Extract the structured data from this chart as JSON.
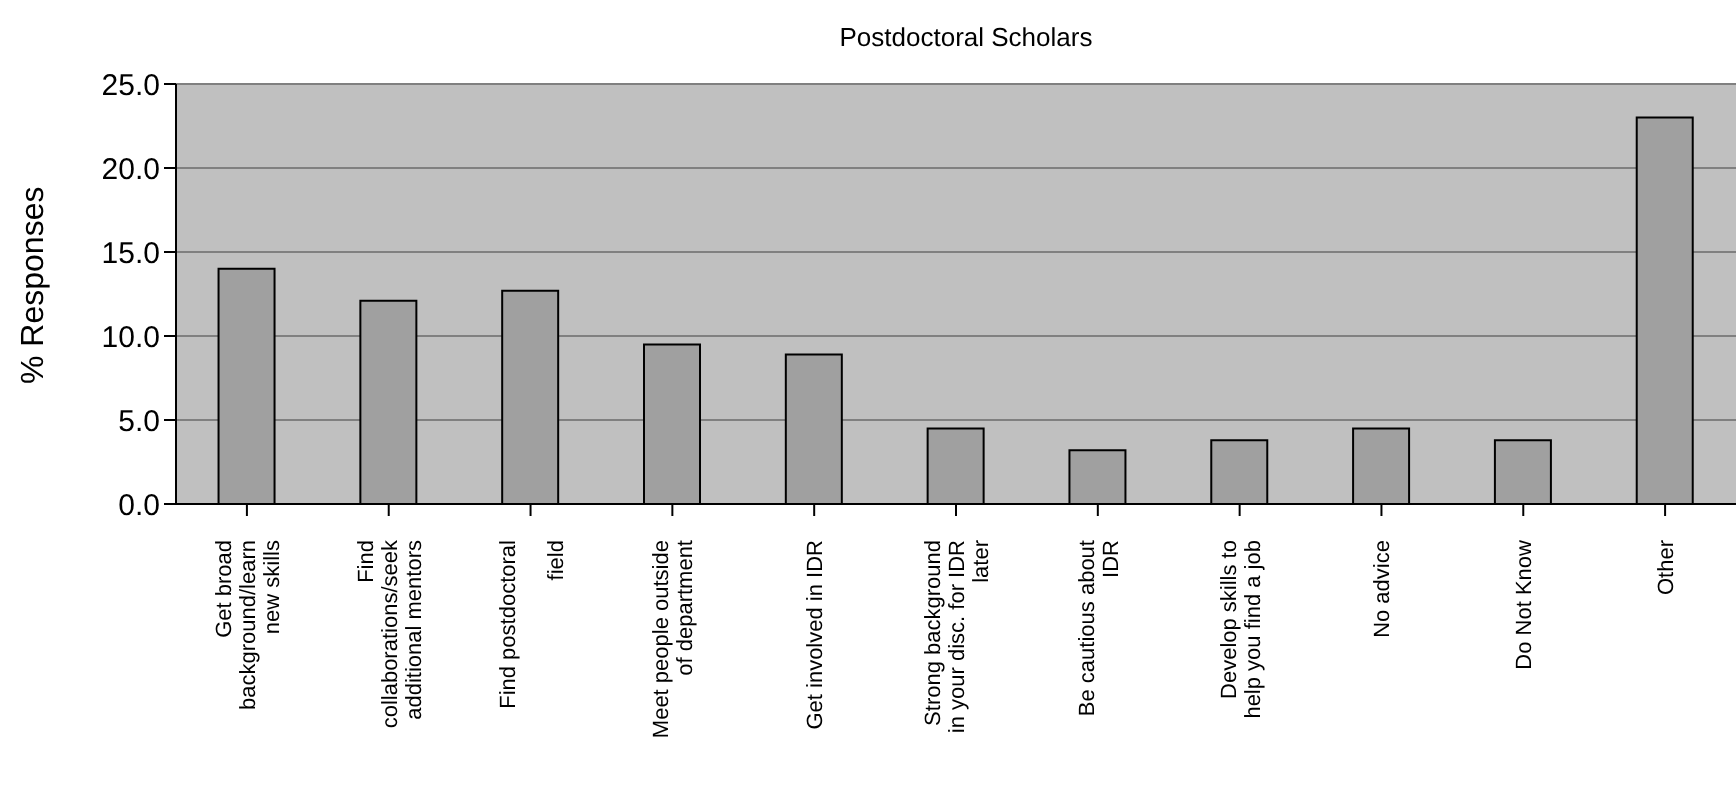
{
  "chart_data": {
    "type": "bar",
    "title": "Postdoctoral Scholars",
    "ylabel": "% Responses",
    "categories": [
      "Get broad\nbackground/learn\nnew skills",
      "Find\ncollaborations/seek\nadditional mentors",
      "Find postdoctoral\n\nfield",
      "Meet people outside\nof department",
      "Get involved in IDR",
      "Strong background\nin your disc. for IDR\nlater",
      "Be cautious about\nIDR",
      "Develop skills to\nhelp you find a job",
      "No advice",
      "Do Not Know",
      "Other"
    ],
    "values": [
      14.0,
      12.1,
      12.7,
      9.5,
      8.9,
      4.5,
      3.2,
      3.8,
      4.5,
      3.8,
      23.0
    ],
    "color": "#a0a0a0",
    "ylim": [
      0,
      25
    ],
    "yticks": [
      {
        "value": 0,
        "label": "0.0"
      },
      {
        "value": 5,
        "label": "5.0"
      },
      {
        "value": 10,
        "label": "10.0"
      },
      {
        "value": 15,
        "label": "15.0"
      },
      {
        "value": 20,
        "label": "20.0"
      },
      {
        "value": 25,
        "label": "25.0"
      }
    ],
    "grid": "y",
    "legend": false
  }
}
